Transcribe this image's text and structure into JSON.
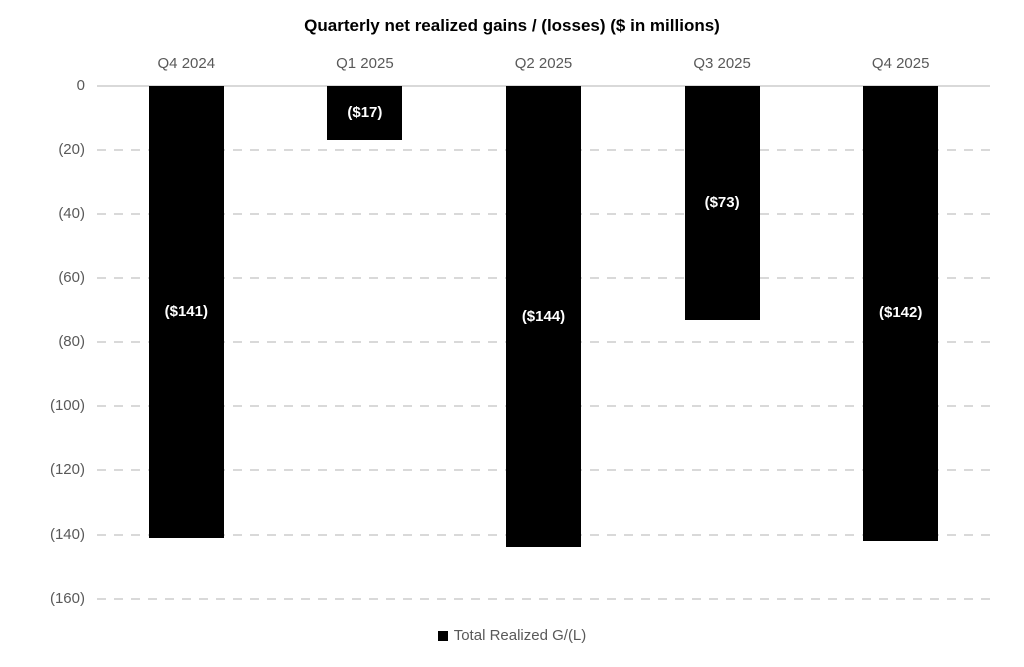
{
  "chart_data": {
    "type": "bar",
    "title": "Quarterly net realized gains / (losses) ($ in millions)",
    "categories": [
      "Q4 2024",
      "Q1 2025",
      "Q2 2025",
      "Q3 2025",
      "Q4 2025"
    ],
    "series": [
      {
        "name": "Total Realized G/(L)",
        "values": [
          -141,
          -17,
          -144,
          -73,
          -142
        ],
        "labels": [
          "($141)",
          "($17)",
          "($144)",
          "($73)",
          "($142)"
        ],
        "color": "#000000"
      }
    ],
    "ylim": [
      -160,
      0
    ],
    "yticks": {
      "values": [
        0,
        -20,
        -40,
        -60,
        -80,
        -100,
        -120,
        -140,
        -160
      ],
      "labels": [
        "0",
        "(20)",
        "(40)",
        "(60)",
        "(80)",
        "(100)",
        "(120)",
        "(140)",
        "(160)"
      ]
    },
    "grid": "horizontal-dashed",
    "category_axis_position": "top",
    "legend_position": "bottom",
    "colors": {
      "bar": "#000000",
      "bar_label": "#ffffff",
      "axis_text": "#595959",
      "gridline": "#d9d9d9",
      "title": "#000000"
    }
  }
}
